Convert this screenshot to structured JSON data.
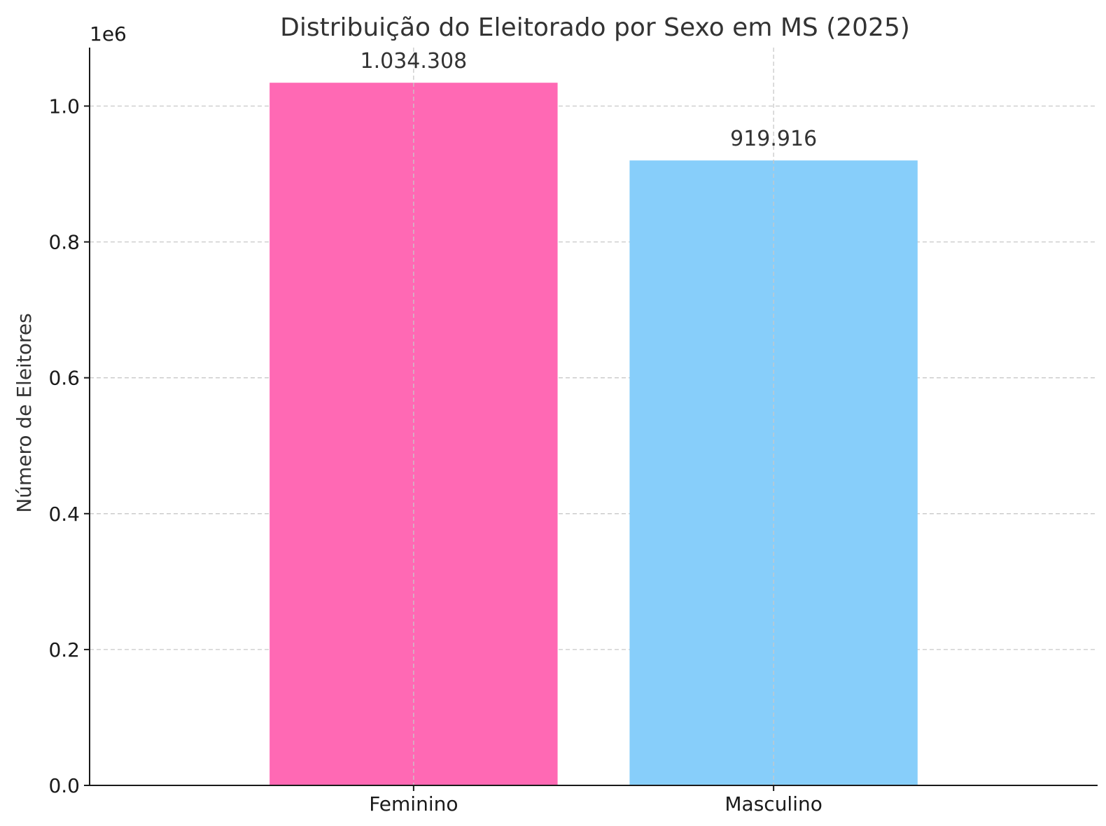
{
  "chart_data": {
    "type": "bar",
    "title": "Distribuição do Eleitorado por Sexo em MS (2025)",
    "xlabel": "",
    "ylabel": "Número de Eleitores",
    "offset_label": "1e6",
    "categories": [
      "Feminino",
      "Masculino"
    ],
    "values": [
      1034308,
      919916
    ],
    "value_labels": [
      "1.034.308",
      "919.916"
    ],
    "colors": [
      "#ff69b4",
      "#87cefa"
    ],
    "ylim": [
      0,
      1086023
    ],
    "yticks": [
      0,
      200000,
      400000,
      600000,
      800000,
      1000000
    ],
    "ytick_labels": [
      "0.0",
      "0.2",
      "0.4",
      "0.6",
      "0.8",
      "1.0"
    ],
    "grid": true
  }
}
